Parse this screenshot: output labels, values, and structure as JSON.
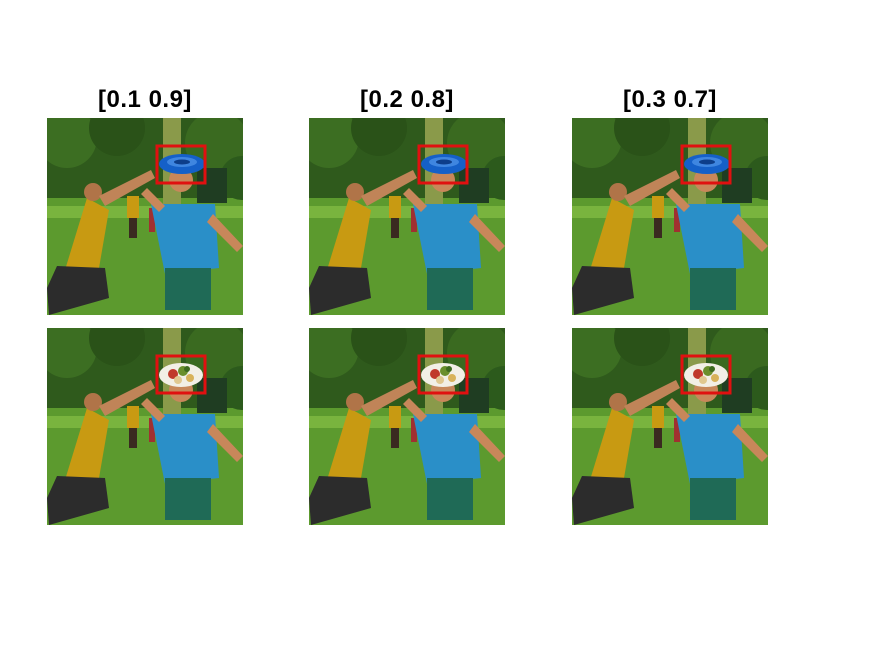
{
  "figure": {
    "column_titles": [
      "[0.1 0.9]",
      "[0.2 0.8]",
      "[0.3 0.7]"
    ],
    "rows": [
      {
        "object": "blue frisbee",
        "object_icon": "frisbee-icon"
      },
      {
        "object": "food plate",
        "object_icon": "plate-icon"
      }
    ],
    "box_color": "#e01010",
    "frisbee_color": "#1560c8",
    "shirt_left_color": "#c89a12",
    "shirt_right_color": "#2a8fc8",
    "grass_color": "#5c9a2e"
  }
}
